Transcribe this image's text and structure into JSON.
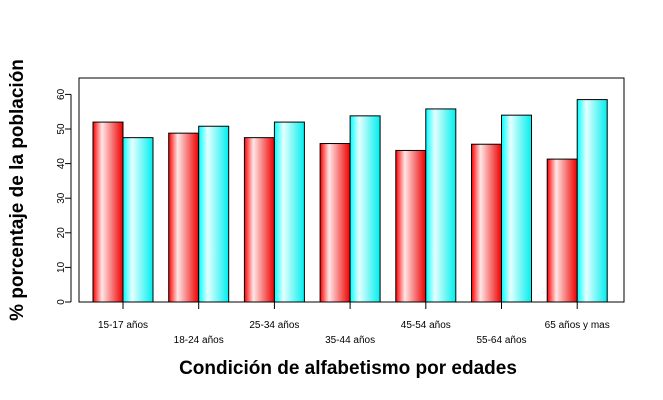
{
  "chart_data": {
    "type": "bar",
    "title": "",
    "xlabel": "Condición de alfabetismo por edades",
    "ylabel": "% porcentaje de la población",
    "categories": [
      "15-17 años",
      "18-24 años",
      "25-34 años",
      "35-44 años",
      "45-54 años",
      "55-64 años",
      "65 años y mas"
    ],
    "series": [
      {
        "values": [
          52,
          48.8,
          47.5,
          45.8,
          43.8,
          45.6,
          41.3
        ],
        "color": "#ff0000"
      },
      {
        "values": [
          47.5,
          50.8,
          52,
          53.8,
          55.8,
          54,
          58.5
        ],
        "color": "#00ffff"
      }
    ],
    "ylim": [
      0,
      60
    ],
    "yticks": [
      0,
      10,
      20,
      30,
      40,
      50,
      60
    ],
    "grid": false,
    "legend": "none",
    "bar_style": "gradient"
  }
}
